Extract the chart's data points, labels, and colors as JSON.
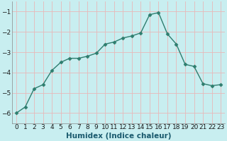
{
  "x": [
    0,
    1,
    2,
    3,
    4,
    5,
    6,
    7,
    8,
    9,
    10,
    11,
    12,
    13,
    14,
    15,
    16,
    17,
    18,
    19,
    20,
    21,
    22,
    23
  ],
  "y": [
    -6.0,
    -5.7,
    -4.8,
    -4.6,
    -3.9,
    -3.5,
    -3.3,
    -3.3,
    -3.2,
    -3.05,
    -2.6,
    -2.5,
    -2.3,
    -2.2,
    -2.05,
    -1.15,
    -1.05,
    -2.1,
    -2.6,
    -3.6,
    -3.7,
    -4.55,
    -4.65,
    -4.6
  ],
  "line_color": "#2e7d6e",
  "marker": "D",
  "marker_size": 2.5,
  "bg_color": "#c8eef0",
  "grid_color_v": "#e8b8b8",
  "grid_color_h": "#e8b8b8",
  "xlabel": "Humidex (Indice chaleur)",
  "ylim": [
    -6.5,
    -0.5
  ],
  "xlim": [
    -0.5,
    23.5
  ],
  "yticks": [
    -6,
    -5,
    -4,
    -3,
    -2,
    -1
  ],
  "xticks": [
    0,
    1,
    2,
    3,
    4,
    5,
    6,
    7,
    8,
    9,
    10,
    11,
    12,
    13,
    14,
    15,
    16,
    17,
    18,
    19,
    20,
    21,
    22,
    23
  ],
  "xlabel_fontsize": 7.5,
  "tick_fontsize": 6.5
}
